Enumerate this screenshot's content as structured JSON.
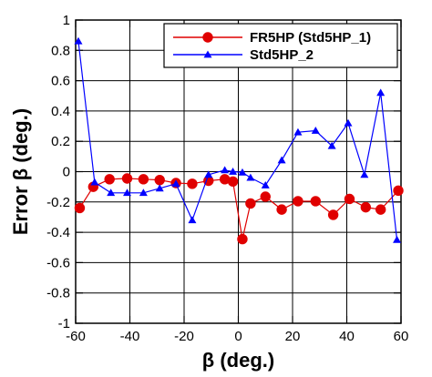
{
  "chart_data": {
    "type": "line",
    "title": "",
    "xlabel": "β (deg.)",
    "ylabel": "Error β (deg.)",
    "xlim": [
      -60,
      60
    ],
    "ylim": [
      -1,
      1
    ],
    "x_ticks": [
      -60,
      -40,
      -20,
      0,
      20,
      40,
      60
    ],
    "x_tick_labels": [
      "-60",
      "-40",
      "-20",
      "0",
      "20",
      "40",
      "60"
    ],
    "y_ticks": [
      -1,
      -0.8,
      -0.6,
      -0.4,
      -0.2,
      0,
      0.2,
      0.4,
      0.6,
      0.8,
      1
    ],
    "y_tick_labels": [
      "-1",
      "-0.8",
      "-0.6",
      "-0.4",
      "-0.2",
      "0",
      "0.2",
      "0.4",
      "0.6",
      "0.8",
      "1"
    ],
    "grid": true,
    "legend_position": "top-right",
    "series": [
      {
        "name": "FR5HP (Std5HP_1)",
        "color": "#e00000",
        "marker": "circle",
        "x": [
          -58.5,
          -53.5,
          -47.5,
          -41,
          -35,
          -29,
          -23,
          -17,
          -11,
          -5,
          -2,
          1.5,
          4.5,
          10,
          16,
          22,
          28.5,
          35,
          41,
          47,
          52.5,
          59
        ],
        "y": [
          -0.24,
          -0.1,
          -0.05,
          -0.045,
          -0.05,
          -0.055,
          -0.075,
          -0.08,
          -0.06,
          -0.05,
          -0.065,
          -0.445,
          -0.21,
          -0.165,
          -0.25,
          -0.195,
          -0.195,
          -0.285,
          -0.18,
          -0.235,
          -0.25,
          -0.125
        ]
      },
      {
        "name": "Std5HP_2",
        "color": "#0000ff",
        "marker": "triangle",
        "x": [
          -59,
          -53,
          -47,
          -41,
          -35,
          -29,
          -23,
          -17,
          -11,
          -5,
          -2,
          1.5,
          4.5,
          10,
          16,
          22,
          28.5,
          34.5,
          40.5,
          46.5,
          52.5,
          58.5
        ],
        "y": [
          0.86,
          -0.07,
          -0.14,
          -0.14,
          -0.14,
          -0.11,
          -0.08,
          -0.32,
          -0.02,
          0.01,
          0.0,
          -0.005,
          -0.04,
          -0.09,
          0.075,
          0.26,
          0.27,
          0.17,
          0.32,
          -0.02,
          0.52,
          -0.45
        ]
      }
    ]
  }
}
